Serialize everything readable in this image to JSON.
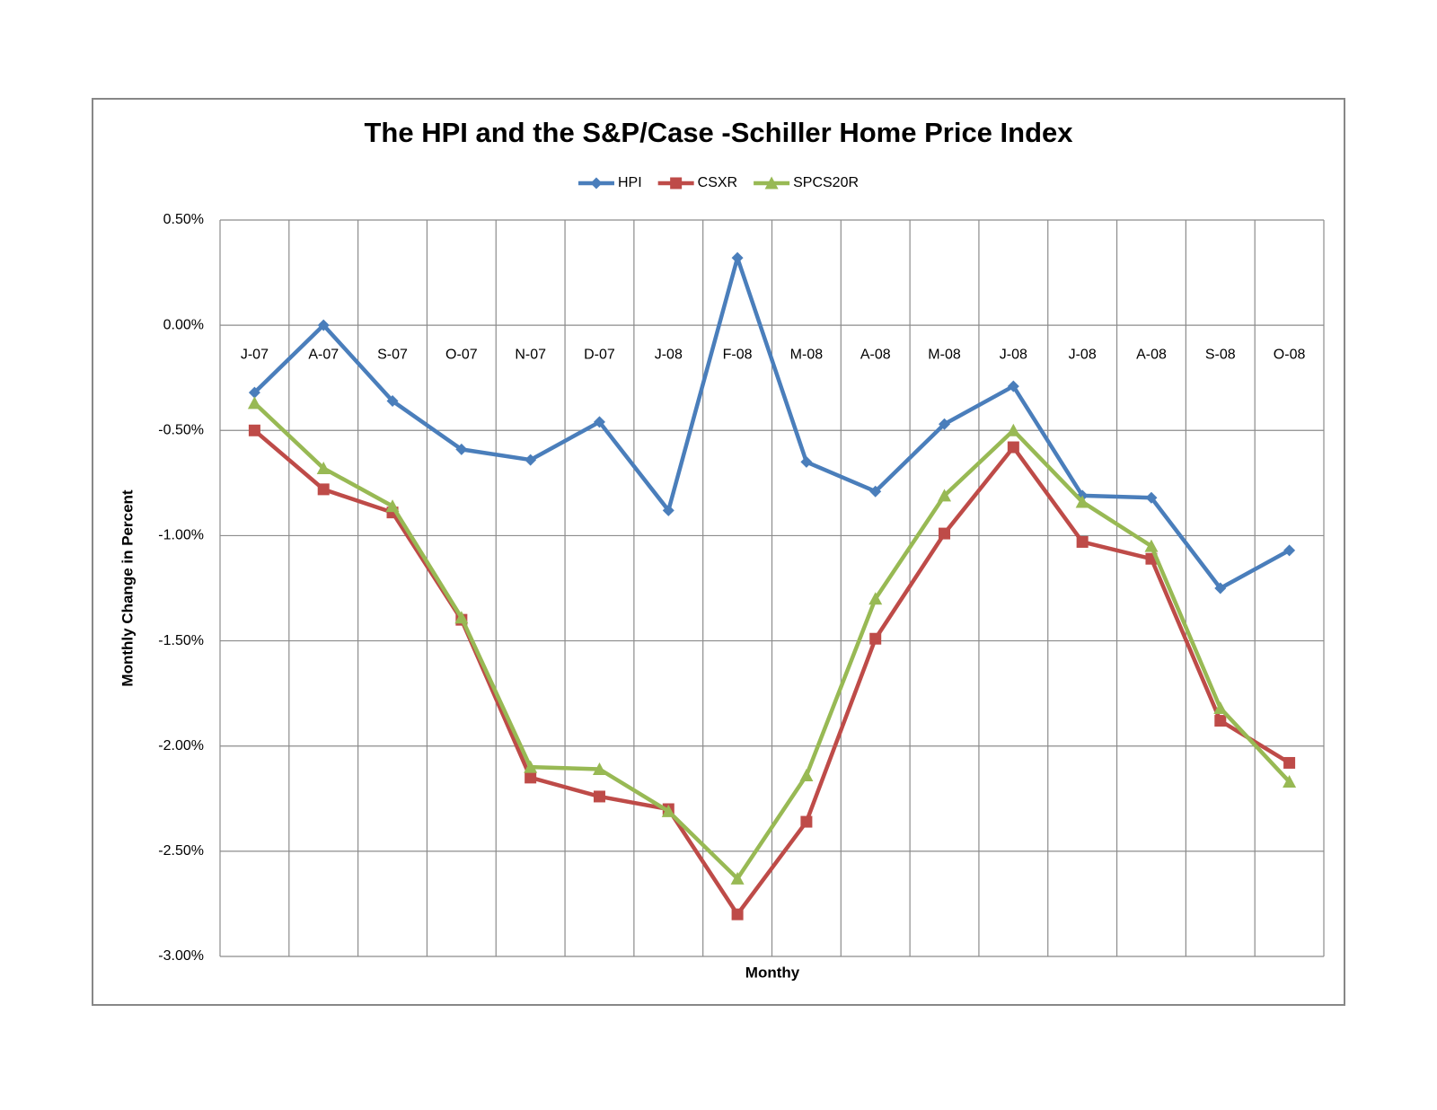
{
  "chart_data": {
    "type": "line",
    "title": "The HPI and the S&P/Case -Schiller Home Price Index",
    "x_label": "Monthy",
    "y_label": "Monthly Change in Percent",
    "categories": [
      "J-07",
      "A-07",
      "S-07",
      "O-07",
      "N-07",
      "D-07",
      "J-08",
      "F-08",
      "M-08",
      "A-08",
      "M-08",
      "J-08",
      "J-08",
      "A-08",
      "S-08",
      "O-08"
    ],
    "series": [
      {
        "name": "HPI",
        "color": "#4a7ebb",
        "marker": "diamond",
        "values": [
          -0.32,
          0.0,
          -0.36,
          -0.59,
          -0.64,
          -0.46,
          -0.88,
          0.32,
          -0.65,
          -0.79,
          -0.47,
          -0.29,
          -0.81,
          -0.82,
          -1.25,
          -1.07
        ]
      },
      {
        "name": "CSXR",
        "color": "#be4b48",
        "marker": "square",
        "values": [
          -0.5,
          -0.78,
          -0.89,
          -1.4,
          -2.15,
          -2.24,
          -2.3,
          -2.8,
          -2.36,
          -1.49,
          -0.99,
          -0.58,
          -1.03,
          -1.11,
          -1.88,
          -2.08
        ]
      },
      {
        "name": "SPCS20R",
        "color": "#98b954",
        "marker": "triangle",
        "values": [
          -0.37,
          -0.68,
          -0.86,
          -1.39,
          -2.1,
          -2.11,
          -2.31,
          -2.63,
          -2.14,
          -1.3,
          -0.81,
          -0.5,
          -0.84,
          -1.05,
          -1.82,
          -2.17
        ]
      }
    ],
    "ylim": [
      -3,
      0.5
    ],
    "yticks": [
      {
        "value": 0.5,
        "label": "0.50%"
      },
      {
        "value": 0,
        "label": "0.00%"
      },
      {
        "value": -0.5,
        "label": "-0.50%"
      },
      {
        "value": -1,
        "label": "-1.00%"
      },
      {
        "value": -1.5,
        "label": "-1.50%"
      },
      {
        "value": -2,
        "label": "-2.00%"
      },
      {
        "value": -2.5,
        "label": "-2.50%"
      },
      {
        "value": -3,
        "label": "-3.00%"
      }
    ],
    "grid": true,
    "legend": "top"
  }
}
